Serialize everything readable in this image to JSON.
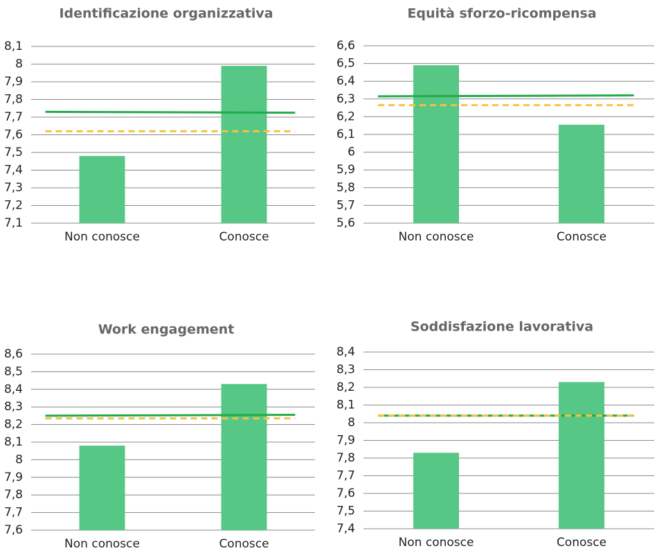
{
  "chart_data": [
    {
      "type": "bar",
      "title": "Identificazione organizzativa",
      "categories": [
        "Non conosce",
        "Conosce"
      ],
      "values": [
        7.48,
        7.99
      ],
      "color": "#57c785",
      "lines": [
        {
          "color": "#22aa4a",
          "dashed": false,
          "values": [
            7.73,
            7.725
          ]
        },
        {
          "color": "#f5c242",
          "dashed": true,
          "values": [
            7.62,
            7.62
          ]
        }
      ],
      "ylim": [
        7.1,
        8.1
      ],
      "yticks": [
        {
          "value": 7.1,
          "label": "7,1"
        },
        {
          "value": 7.2,
          "label": "7,2"
        },
        {
          "value": 7.3,
          "label": "7,3"
        },
        {
          "value": 7.4,
          "label": "7,4"
        },
        {
          "value": 7.5,
          "label": "7,5"
        },
        {
          "value": 7.6,
          "label": "7,6"
        },
        {
          "value": 7.7,
          "label": "7,7"
        },
        {
          "value": 7.8,
          "label": "7,8"
        },
        {
          "value": 7.9,
          "label": "7,9"
        },
        8,
        {
          "value": 8.1,
          "label": "8,1"
        }
      ],
      "grid": true
    },
    {
      "type": "bar",
      "title": "Equità sforzo-ricompensa",
      "categories": [
        "Non conosce",
        "Conosce"
      ],
      "values": [
        6.49,
        6.155
      ],
      "color": "#57c785",
      "lines": [
        {
          "color": "#22aa4a",
          "dashed": false,
          "values": [
            6.315,
            6.32
          ]
        },
        {
          "color": "#f5c242",
          "dashed": true,
          "values": [
            6.265,
            6.265
          ]
        }
      ],
      "ylim": [
        5.6,
        6.6
      ],
      "yticks": [
        {
          "value": 5.6,
          "label": "5,6"
        },
        {
          "value": 5.7,
          "label": "5,7"
        },
        {
          "value": 5.8,
          "label": "5,8"
        },
        {
          "value": 5.9,
          "label": "5,9"
        },
        6,
        {
          "value": 6.1,
          "label": "6,1"
        },
        {
          "value": 6.2,
          "label": "6,2"
        },
        {
          "value": 6.3,
          "label": "6,3"
        },
        {
          "value": 6.4,
          "label": "6,4"
        },
        {
          "value": 6.5,
          "label": "6,5"
        },
        {
          "value": 6.6,
          "label": "6,6"
        }
      ],
      "grid": true
    },
    {
      "type": "bar",
      "title": "Work engagement",
      "categories": [
        "Non conosce",
        "Conosce"
      ],
      "values": [
        8.08,
        8.43
      ],
      "color": "#57c785",
      "lines": [
        {
          "color": "#22aa4a",
          "dashed": false,
          "values": [
            8.25,
            8.255
          ]
        },
        {
          "color": "#f5c242",
          "dashed": true,
          "values": [
            8.235,
            8.235
          ]
        }
      ],
      "ylim": [
        7.6,
        8.6
      ],
      "yticks": [
        {
          "value": 7.6,
          "label": "7,6"
        },
        {
          "value": 7.7,
          "label": "7,7"
        },
        {
          "value": 7.8,
          "label": "7,8"
        },
        {
          "value": 7.9,
          "label": "7,9"
        },
        8,
        {
          "value": 8.1,
          "label": "8,1"
        },
        {
          "value": 8.2,
          "label": "8,2"
        },
        {
          "value": 8.3,
          "label": "8,3"
        },
        {
          "value": 8.4,
          "label": "8,4"
        },
        {
          "value": 8.5,
          "label": "8,5"
        },
        {
          "value": 8.6,
          "label": "8,6"
        }
      ],
      "grid": true
    },
    {
      "type": "bar",
      "title": "Soddisfazione lavorativa",
      "categories": [
        "Non conosce",
        "Conosce"
      ],
      "values": [
        7.83,
        8.23
      ],
      "color": "#57c785",
      "lines": [
        {
          "color": "#22aa4a",
          "dashed": false,
          "values": [
            8.04,
            8.04
          ]
        },
        {
          "color": "#f5c242",
          "dashed": true,
          "values": [
            8.04,
            8.04
          ]
        }
      ],
      "ylim": [
        7.4,
        8.4
      ],
      "yticks": [
        {
          "value": 7.4,
          "label": "7,4"
        },
        {
          "value": 7.5,
          "label": "7,5"
        },
        {
          "value": 7.6,
          "label": "7,6"
        },
        {
          "value": 7.7,
          "label": "7,7"
        },
        {
          "value": 7.8,
          "label": "7,8"
        },
        {
          "value": 7.9,
          "label": "7,9"
        },
        8,
        {
          "value": 8.1,
          "label": "8,1"
        },
        {
          "value": 8.2,
          "label": "8,2"
        },
        {
          "value": 8.3,
          "label": "8,3"
        },
        {
          "value": 8.4,
          "label": "8,4"
        }
      ],
      "grid": true
    }
  ]
}
